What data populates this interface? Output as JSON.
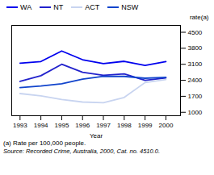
{
  "chart_data": {
    "type": "line",
    "x": [
      1993,
      1994,
      1995,
      1996,
      1997,
      1998,
      1999,
      2000
    ],
    "series": [
      {
        "name": "WA",
        "color": "#0000ee",
        "values": [
          3150,
          3220,
          3680,
          3300,
          3130,
          3230,
          3050,
          3220
        ]
      },
      {
        "name": "NT",
        "color": "#2222cc",
        "values": [
          2350,
          2600,
          3100,
          2750,
          2620,
          2680,
          2400,
          2500
        ]
      },
      {
        "name": "ACT",
        "color": "#c8d4f0",
        "values": [
          1820,
          1720,
          1560,
          1450,
          1420,
          1650,
          2300,
          2430
        ]
      },
      {
        "name": "NSW",
        "color": "#1144cc",
        "values": [
          2080,
          2150,
          2250,
          2450,
          2570,
          2570,
          2490,
          2530
        ]
      }
    ],
    "xlabel": "Year",
    "ylabel": "rate(a)",
    "xlim": [
      1992.6,
      2000.7
    ],
    "xticks": [
      1993,
      1994,
      1995,
      1996,
      1997,
      1998,
      1999,
      2000
    ],
    "ylim": [
      850,
      4800
    ],
    "yticks": [
      1000,
      1700,
      2400,
      3100,
      3800,
      4500
    ],
    "legend": "top",
    "annotations": [
      "(a) Rate per 100,000 people.",
      "Source: Recorded Crime, Australia, 2000, Cat. no. 4510.0."
    ]
  }
}
